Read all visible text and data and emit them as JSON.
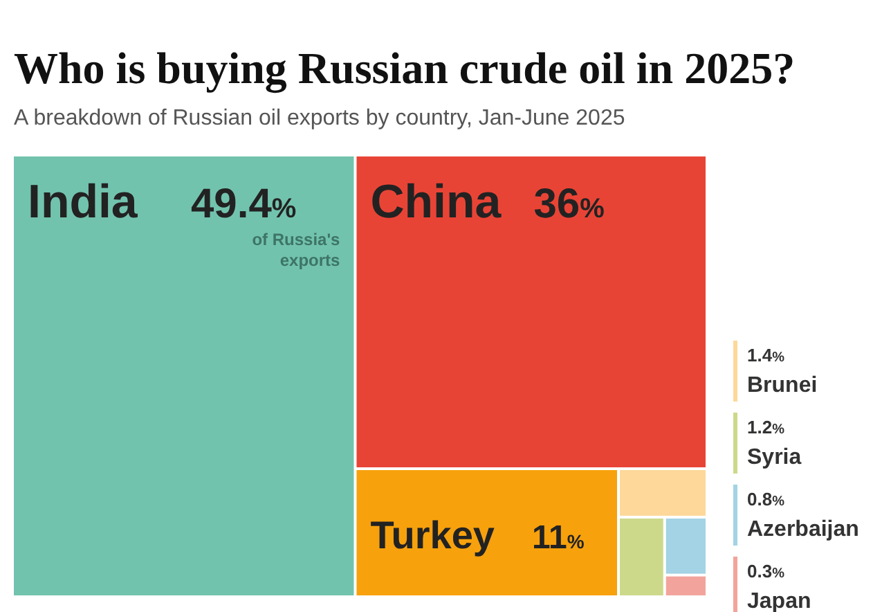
{
  "chart_data": {
    "type": "other",
    "title": "Who is buying Russian crude oil in 2025?",
    "subtitle": "A breakdown of Russian oil exports by country, Jan-June 2025",
    "categories": [
      "India",
      "China",
      "Turkey",
      "Brunei",
      "Syria",
      "Azerbaijan",
      "Japan"
    ],
    "values": [
      49.4,
      36,
      11,
      1.4,
      1.2,
      0.8,
      0.3
    ],
    "value_labels": [
      "49.4%",
      "36%",
      "11%",
      "1.4%",
      "1.2%",
      "0.8%",
      "0.3%"
    ],
    "colors": [
      "#72c3ae",
      "#e84436",
      "#f7a10d",
      "#fdd89a",
      "#cdd98a",
      "#a3d3e4",
      "#f2a49c"
    ],
    "annotations": [
      {
        "text": "of Russia's exports",
        "x": "India"
      }
    ],
    "data_labels": true
  }
}
